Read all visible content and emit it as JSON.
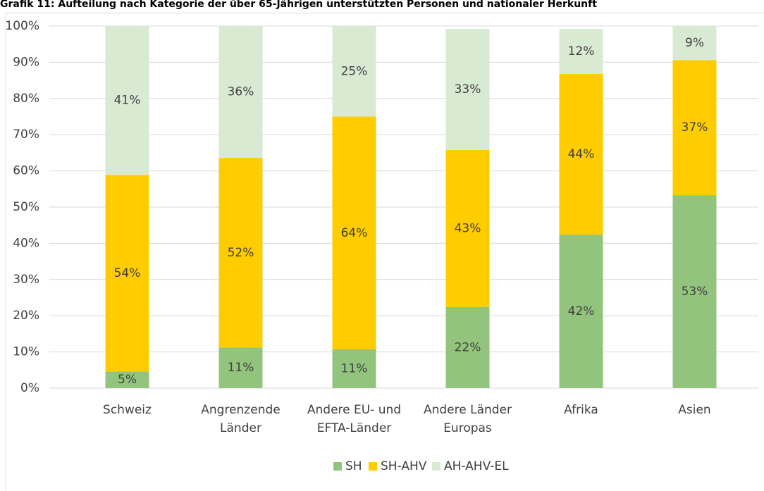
{
  "chart_data": {
    "type": "stacked_bar",
    "title": "Grafik 11: Aufteilung nach Kategorie der über 65-Jährigen unterstützten Personen und nationaler Herkunft",
    "categories": [
      [
        "Schweiz"
      ],
      [
        "Angrenzende",
        "Länder"
      ],
      [
        "Andere EU- und",
        "EFTA-Länder"
      ],
      [
        "Andere Länder",
        "Europas"
      ],
      [
        "Afrika"
      ],
      [
        "Asien"
      ]
    ],
    "series": [
      {
        "name": "SH",
        "color": "#93c47d",
        "values": [
          4.6,
          11.2,
          10.7,
          22.4,
          42.4,
          53.3
        ],
        "value_labels": [
          "5%",
          "11%",
          "11%",
          "22%",
          "42%",
          "53%"
        ]
      },
      {
        "name": "SH-AHV",
        "color": "#ffcc00",
        "values": [
          54.3,
          52.4,
          64.3,
          43.4,
          44.4,
          37.3
        ],
        "value_labels": [
          "54%",
          "52%",
          "64%",
          "43%",
          "44%",
          "37%"
        ]
      },
      {
        "name": "AH-AHV-EL",
        "color": "#d9ead3",
        "values": [
          41.1,
          36.4,
          25.0,
          33.4,
          12.4,
          9.4
        ],
        "value_labels": [
          "41%",
          "36%",
          "25%",
          "33%",
          "12%",
          "9%"
        ]
      }
    ],
    "ylim": [
      0,
      100
    ],
    "yticks": [
      {
        "value": 0,
        "label": "0%"
      },
      {
        "value": 10,
        "label": "10%"
      },
      {
        "value": 20,
        "label": "20%"
      },
      {
        "value": 30,
        "label": "30%"
      },
      {
        "value": 40,
        "label": "40%"
      },
      {
        "value": 50,
        "label": "50%"
      },
      {
        "value": 60,
        "label": "60%"
      },
      {
        "value": 70,
        "label": "70%"
      },
      {
        "value": 80,
        "label": "80%"
      },
      {
        "value": 90,
        "label": "90%"
      },
      {
        "value": 100,
        "label": "100%"
      }
    ],
    "grid": true,
    "legend": "bottom"
  }
}
